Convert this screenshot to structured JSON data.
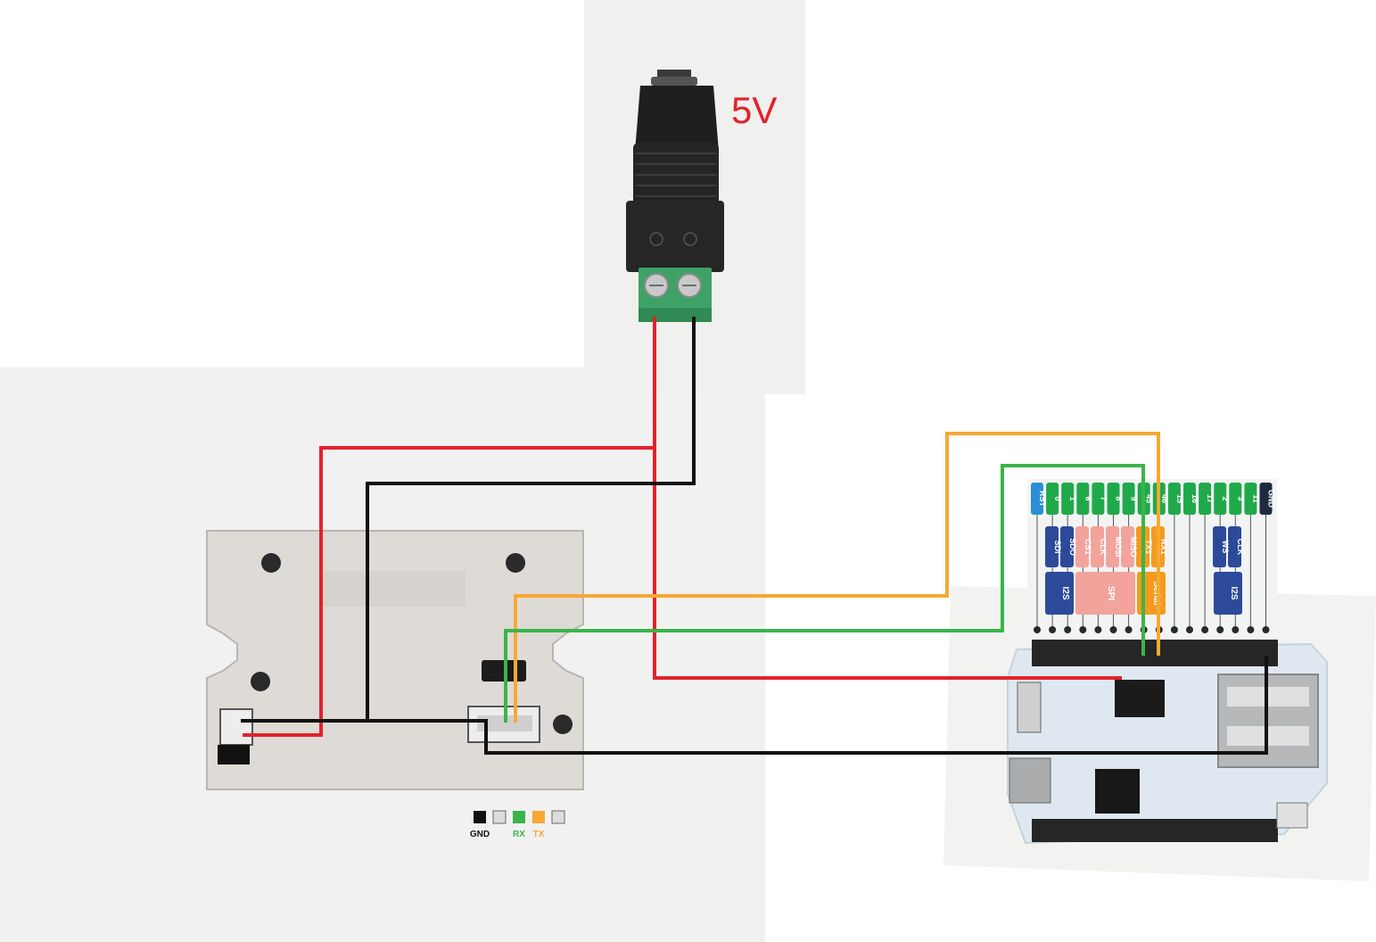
{
  "voltage_label": "5V",
  "pin_labels": [
    "RST",
    "0",
    "1",
    "6",
    "7",
    "8",
    "9",
    "45",
    "46",
    "15",
    "16",
    "17",
    "2",
    "3",
    "11",
    "GND"
  ],
  "function_labels": {
    "sdi": "SDI",
    "sdo": "SDO",
    "cs1": "CS1",
    "clk_spi": "CLK",
    "mosi": "MOSI",
    "miso": "MISO",
    "tx1": "TX1",
    "rx1": "RX1",
    "ws": "WS",
    "clk_i2s": "CLK",
    "i2s_left": "I2S",
    "spi": "SPI",
    "serial": "Serial",
    "i2s_right": "I2S"
  },
  "connector_legend": {
    "gnd": "GND",
    "rx": "RX",
    "tx": "TX"
  },
  "colors": {
    "power_positive": "#e3222b",
    "ground": "#111111",
    "rx": "#3ab54a",
    "tx": "#f7a833",
    "pin_green": "#20a94b",
    "rst_blue": "#2a8fd6",
    "gnd_navy": "#1e2a3f",
    "i2s_blue": "#2d4a9a",
    "spi_pink": "#f2a39c",
    "serial_orange": "#f59a1d",
    "board_color": "#dfe8f0"
  }
}
